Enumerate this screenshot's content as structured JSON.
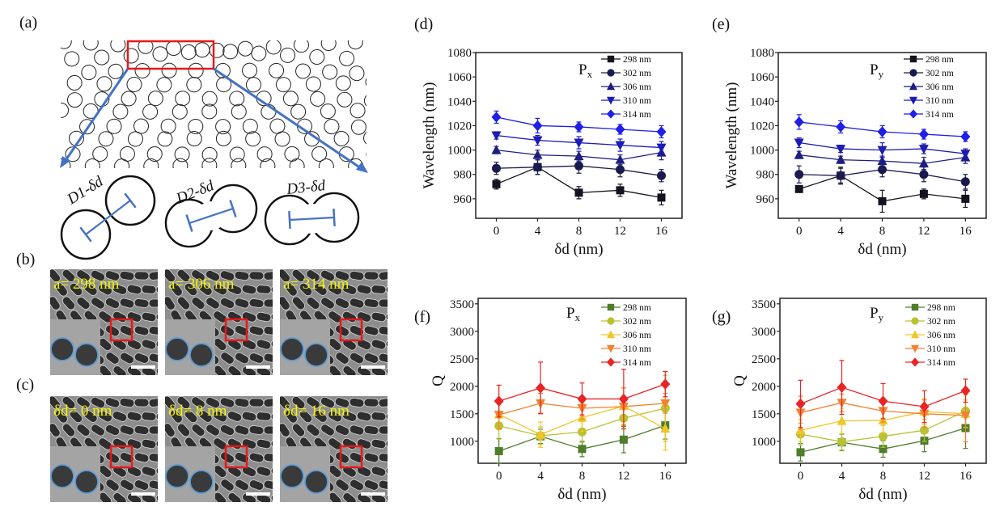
{
  "figure": {
    "panel_a": {
      "label": "(a)",
      "dimer_labels": [
        "D1-δd",
        "D2-δd",
        "D3-δd"
      ],
      "colors": {
        "highlight_box": "#e31a1c",
        "arrows": "#4472c4"
      }
    },
    "panel_b": {
      "label": "(b)",
      "image_labels": [
        "a= 298 nm",
        "a= 306 nm",
        "a= 314 nm"
      ]
    },
    "panel_c": {
      "label": "(c)",
      "image_labels": [
        "δd= 0 nm",
        "δd= 8 nm",
        "δd= 16 nm"
      ]
    },
    "sem_colors": {
      "label": "#f4f400",
      "box": "#e31a1c",
      "circle_outline": "#5b9bd5",
      "scale_bar": "#ffffff"
    }
  },
  "chart_data": [
    {
      "panel_label": "(d)",
      "type": "line",
      "annotation": {
        "main": "P",
        "sub": "x"
      },
      "xlabel": "δd (nm)",
      "ylabel": "Wavelength (nm)",
      "x": [
        0,
        4,
        8,
        12,
        16
      ],
      "xlim": [
        -2,
        18
      ],
      "ylim": [
        944,
        1080
      ],
      "xticks": [
        0,
        4,
        8,
        12,
        16
      ],
      "yticks": [
        960,
        980,
        1000,
        1020,
        1040,
        1060,
        1080
      ],
      "grid": false,
      "legend_placement": "top-right",
      "error_bars": true,
      "series": [
        {
          "name": "298 nm",
          "marker": "square",
          "color": "#141420",
          "values": [
            972,
            986,
            965,
            967,
            961
          ],
          "errors": [
            4,
            6,
            5,
            5,
            6
          ]
        },
        {
          "name": "302 nm",
          "marker": "circle",
          "color": "#1a1a4e",
          "values": [
            985,
            986,
            987,
            984,
            979
          ],
          "errors": [
            5,
            6,
            6,
            6,
            5
          ]
        },
        {
          "name": "306 nm",
          "marker": "triangle-up",
          "color": "#1e1e82",
          "values": [
            1000,
            996,
            995,
            992,
            998
          ],
          "errors": [
            3,
            4,
            4,
            4,
            6
          ]
        },
        {
          "name": "310 nm",
          "marker": "triangle-down",
          "color": "#1c1cb4",
          "values": [
            1012,
            1008,
            1006,
            1004,
            1002
          ],
          "errors": [
            3,
            4,
            5,
            5,
            5
          ]
        },
        {
          "name": "314 nm",
          "marker": "diamond",
          "color": "#1f1fe6",
          "values": [
            1027,
            1020,
            1019,
            1017,
            1015
          ],
          "errors": [
            5,
            6,
            4,
            4,
            5
          ]
        }
      ]
    },
    {
      "panel_label": "(e)",
      "type": "line",
      "annotation": {
        "main": "P",
        "sub": "y"
      },
      "xlabel": "δd (nm)",
      "ylabel": "Wavelength (nm)",
      "x": [
        0,
        4,
        8,
        12,
        16
      ],
      "xlim": [
        -2,
        18
      ],
      "ylim": [
        944,
        1080
      ],
      "xticks": [
        0,
        4,
        8,
        12,
        16
      ],
      "yticks": [
        960,
        980,
        1000,
        1020,
        1040,
        1060,
        1080
      ],
      "grid": false,
      "legend_placement": "top-right",
      "error_bars": true,
      "series": [
        {
          "name": "298 nm",
          "marker": "square",
          "color": "#141420",
          "values": [
            968,
            979,
            958,
            964,
            960
          ],
          "errors": [
            2,
            7,
            9,
            4,
            7
          ]
        },
        {
          "name": "302 nm",
          "marker": "circle",
          "color": "#1a1a4e",
          "values": [
            980,
            979,
            984,
            980,
            974
          ],
          "errors": [
            7,
            6,
            6,
            6,
            6
          ]
        },
        {
          "name": "306 nm",
          "marker": "triangle-up",
          "color": "#1e1e82",
          "values": [
            996,
            992,
            991,
            989,
            994
          ],
          "errors": [
            3,
            3,
            4,
            5,
            5
          ]
        },
        {
          "name": "310 nm",
          "marker": "triangle-down",
          "color": "#1c1cb4",
          "values": [
            1006,
            1001,
            1000,
            1001,
            997
          ],
          "errors": [
            4,
            3,
            6,
            4,
            4
          ]
        },
        {
          "name": "314 nm",
          "marker": "diamond",
          "color": "#1f1fe6",
          "values": [
            1023,
            1019,
            1015,
            1013,
            1011
          ],
          "errors": [
            6,
            5,
            5,
            4,
            4
          ]
        }
      ]
    },
    {
      "panel_label": "(f)",
      "type": "line",
      "annotation": {
        "main": "P",
        "sub": "x"
      },
      "xlabel": "δd (nm)",
      "ylabel": "Q",
      "x": [
        0,
        4,
        8,
        12,
        16
      ],
      "xlim": [
        -2,
        18
      ],
      "ylim": [
        600,
        3600
      ],
      "xticks": [
        0,
        4,
        8,
        12,
        16
      ],
      "yticks": [
        1000,
        1500,
        2000,
        2500,
        3000,
        3500
      ],
      "grid": false,
      "legend_placement": "top-right",
      "error_bars": true,
      "series": [
        {
          "name": "298 nm",
          "marker": "square",
          "color": "#4e7d2c",
          "values": [
            820,
            1090,
            860,
            1030,
            1290
          ],
          "errors": [
            230,
            130,
            140,
            240,
            250
          ]
        },
        {
          "name": "302 nm",
          "marker": "circle",
          "color": "#b8c232",
          "values": [
            1280,
            1100,
            1170,
            1420,
            1600
          ],
          "errors": [
            240,
            160,
            190,
            200,
            600
          ]
        },
        {
          "name": "306 nm",
          "marker": "triangle-up",
          "color": "#f0c528",
          "values": [
            1490,
            1120,
            1430,
            1640,
            1230
          ],
          "errors": [
            250,
            230,
            250,
            330,
            390
          ]
        },
        {
          "name": "310 nm",
          "marker": "triangle-down",
          "color": "#f08232",
          "values": [
            1480,
            1690,
            1600,
            1630,
            1690
          ],
          "errors": [
            250,
            180,
            200,
            340,
            180
          ]
        },
        {
          "name": "314 nm",
          "marker": "diamond",
          "color": "#e82424",
          "values": [
            1730,
            1970,
            1770,
            1770,
            2040
          ],
          "errors": [
            290,
            470,
            290,
            540,
            230
          ]
        }
      ]
    },
    {
      "panel_label": "(g)",
      "type": "line",
      "annotation": {
        "main": "P",
        "sub": "y"
      },
      "xlabel": "δd (nm)",
      "ylabel": "Q",
      "x": [
        0,
        4,
        8,
        12,
        16
      ],
      "xlim": [
        -2,
        18
      ],
      "ylim": [
        600,
        3600
      ],
      "xticks": [
        0,
        4,
        8,
        12,
        16
      ],
      "yticks": [
        1000,
        1500,
        2000,
        2500,
        3000,
        3500
      ],
      "grid": false,
      "legend_placement": "top-right",
      "error_bars": true,
      "series": [
        {
          "name": "298 nm",
          "marker": "square",
          "color": "#4e7d2c",
          "values": [
            800,
            980,
            860,
            1010,
            1240
          ],
          "errors": [
            160,
            150,
            150,
            200,
            370
          ]
        },
        {
          "name": "302 nm",
          "marker": "circle",
          "color": "#b8c232",
          "values": [
            1130,
            990,
            1090,
            1200,
            1550
          ],
          "errors": [
            200,
            150,
            200,
            200,
            300
          ]
        },
        {
          "name": "306 nm",
          "marker": "triangle-up",
          "color": "#f0c528",
          "values": [
            1200,
            1370,
            1380,
            1540,
            1500
          ],
          "errors": [
            200,
            230,
            230,
            230,
            250
          ]
        },
        {
          "name": "310 nm",
          "marker": "triangle-down",
          "color": "#f08232",
          "values": [
            1520,
            1700,
            1550,
            1500,
            1470
          ],
          "errors": [
            300,
            160,
            200,
            250,
            480
          ]
        },
        {
          "name": "314 nm",
          "marker": "diamond",
          "color": "#e82424",
          "values": [
            1680,
            1980,
            1730,
            1630,
            1920
          ],
          "errors": [
            430,
            490,
            320,
            290,
            210
          ]
        }
      ]
    }
  ]
}
